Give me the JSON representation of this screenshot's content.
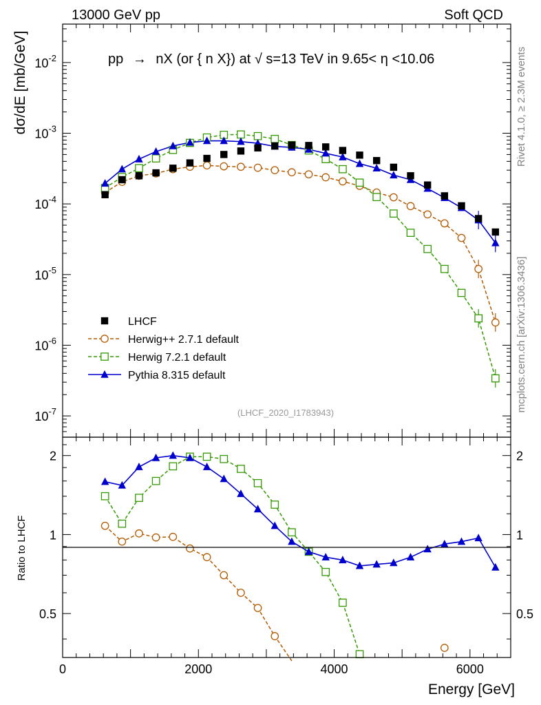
{
  "header": {
    "left": "13000 GeV pp",
    "right": "Soft QCD"
  },
  "side_labels": {
    "rivet": "Rivet 4.1.0, ≥ 2.3M events",
    "mcplots": "mcplots.cern.ch [arXiv:1306.3436]"
  },
  "chart_data": {
    "type": "scatter",
    "title": "pp → nX (or n̄X) at √s=13 TeV in 9.65<η<10.06",
    "title_parts": {
      "lhs": "pp",
      "arrow": "→",
      "final": "nX (or {",
      "nbar": "n",
      "final2": "X}) at ",
      "sqrt": "√",
      "energy": "s=13 TeV in 9.65<",
      "eta": "η",
      "range": "<10.06"
    },
    "ylabel": "dσ/dE [mb/GeV]",
    "ratio_ylabel": "Ratio to LHCF",
    "xlabel": "Energy [GeV]",
    "watermark": "(LHCF_2020_I1783943)",
    "xlim": [
      0,
      6600
    ],
    "ylim": [
      5e-08,
      0.035
    ],
    "ratio_ylim": [
      0.34,
      2.35
    ],
    "x_ticks": [
      0,
      2000,
      4000,
      6000
    ],
    "x_tick_labels": [
      "0",
      "2000",
      "4000",
      "6000"
    ],
    "y_ticks": [
      1e-07,
      1e-06,
      1e-05,
      0.0001,
      0.001,
      0.01
    ],
    "y_tick_labels": [
      "10^-7",
      "10^-6",
      "10^-5",
      "10^-4",
      "10^-3",
      "10^-2"
    ],
    "ratio_ticks": [
      0.5,
      1,
      2
    ],
    "ratio_tick_labels": [
      "0.5",
      "1",
      "2"
    ],
    "x": [
      625,
      875,
      1125,
      1375,
      1625,
      1875,
      2125,
      2375,
      2625,
      2875,
      3125,
      3375,
      3625,
      3875,
      4125,
      4375,
      4625,
      4875,
      5125,
      5375,
      5625,
      5875,
      6125,
      6375
    ],
    "series": [
      {
        "name": "LHCF",
        "style": "data",
        "marker": "filled-square",
        "color": "#000000",
        "values": [
          0.000135,
          0.00022,
          0.00025,
          0.000275,
          0.00032,
          0.00038,
          0.00044,
          0.0005,
          0.00056,
          0.00062,
          0.00066,
          0.00068,
          0.00067,
          0.00064,
          0.00057,
          0.00049,
          0.00041,
          0.00033,
          0.00025,
          0.000185,
          0.00013,
          9.4e-05,
          6.2e-05,
          4e-05
        ]
      },
      {
        "name": "Herwig++ 2.7.1 default",
        "style": "dashed",
        "marker": "open-circle",
        "color": "#b35900",
        "values": [
          0.000145,
          0.000205,
          0.00025,
          0.00027,
          0.00031,
          0.000335,
          0.00035,
          0.00034,
          0.000335,
          0.000325,
          0.0003,
          0.00028,
          0.000262,
          0.000238,
          0.000208,
          0.00018,
          0.000145,
          0.000124,
          9.3e-05,
          7.1e-05,
          5.3e-05,
          3.3e-05,
          1.2e-05,
          2.1e-06
        ]
      },
      {
        "name": "Herwig 7.2.1 default",
        "style": "dashed",
        "marker": "open-square",
        "color": "#339900",
        "values": [
          0.000168,
          0.00024,
          0.00032,
          0.00044,
          0.00058,
          0.00073,
          0.00087,
          0.00095,
          0.00096,
          0.00091,
          0.00083,
          0.00068,
          0.00057,
          0.00043,
          0.00031,
          0.0002,
          0.000125,
          7.3e-05,
          3.9e-05,
          2.3e-05,
          1.2e-05,
          5.5e-06,
          2.4e-06,
          3.4e-07
        ]
      },
      {
        "name": "Pythia 8.315 default",
        "style": "solid",
        "marker": "filled-triangle",
        "color": "#0000cc",
        "values": [
          0.000195,
          0.00031,
          0.00043,
          0.00055,
          0.00066,
          0.00074,
          0.00078,
          0.00078,
          0.00076,
          0.00072,
          0.00065,
          0.00063,
          0.00059,
          0.00052,
          0.00046,
          0.00037,
          0.00032,
          0.000255,
          0.00022,
          0.000165,
          0.000122,
          8.8e-05,
          5.9e-05,
          2.8e-05
        ]
      }
    ],
    "ratio_series": [
      {
        "name": "Herwig++ 2.7.1 default",
        "x": [
          625,
          875,
          1125,
          1375,
          1625,
          1875,
          2125,
          2375,
          2625,
          2875,
          3125,
          3375,
          5625
        ],
        "values": [
          1.08,
          0.94,
          1.01,
          0.975,
          0.98,
          0.885,
          0.82,
          0.7,
          0.6,
          0.525,
          0.41,
          0.33,
          0.37
        ]
      },
      {
        "name": "Herwig 7.2.1 default",
        "x": [
          625,
          875,
          1125,
          1375,
          1625,
          1875,
          2125,
          2375,
          2625,
          2875,
          3125,
          3375,
          3625,
          3875,
          4125,
          4375
        ],
        "values": [
          1.4,
          1.1,
          1.38,
          1.6,
          1.82,
          1.98,
          1.98,
          1.94,
          1.78,
          1.57,
          1.3,
          1.02,
          0.86,
          0.72,
          0.55,
          0.35
        ]
      },
      {
        "name": "Pythia 8.315 default",
        "x": [
          625,
          875,
          1125,
          1375,
          1625,
          1875,
          2125,
          2375,
          2625,
          2875,
          3125,
          3375,
          3625,
          3875,
          4125,
          4375,
          4625,
          4875,
          5125,
          5375,
          5625,
          5875,
          6125,
          6375
        ],
        "values": [
          1.59,
          1.54,
          1.81,
          1.96,
          2.0,
          1.96,
          1.81,
          1.63,
          1.43,
          1.25,
          1.08,
          0.94,
          0.86,
          0.82,
          0.8,
          0.76,
          0.77,
          0.78,
          0.82,
          0.88,
          0.92,
          0.94,
          0.97,
          0.75
        ]
      }
    ],
    "legend_position": "lower-left",
    "grid": false
  }
}
